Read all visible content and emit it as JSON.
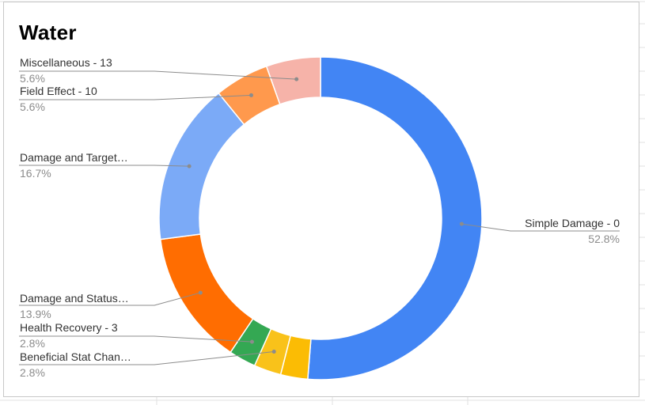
{
  "chart_data": {
    "type": "pie",
    "donut": true,
    "title": "Water",
    "legend": "none",
    "slices": [
      {
        "label": "Simple Damage - 0",
        "percent_label": "52.8%",
        "value": 52.8,
        "color": "#4285f4"
      },
      {
        "label": "",
        "percent_label": "",
        "value": 2.8,
        "color": "#fbbc04"
      },
      {
        "label": "Beneficial Stat Chan…",
        "percent_label": "2.8%",
        "value": 2.8,
        "color": "#f9c21a"
      },
      {
        "label": "Health Recovery - 3",
        "percent_label": "2.8%",
        "value": 2.8,
        "color": "#34a853"
      },
      {
        "label": "Damage and Status…",
        "percent_label": "13.9%",
        "value": 13.9,
        "color": "#ff6d01"
      },
      {
        "label": "Damage and Target…",
        "percent_label": "16.7%",
        "value": 16.7,
        "color": "#7baaf7"
      },
      {
        "label": "Field Effect - 10",
        "percent_label": "5.6%",
        "value": 5.6,
        "color": "#ff994d"
      },
      {
        "label": "Miscellaneous - 13",
        "percent_label": "5.6%",
        "value": 5.6,
        "color": "#f6b3a9"
      }
    ]
  }
}
